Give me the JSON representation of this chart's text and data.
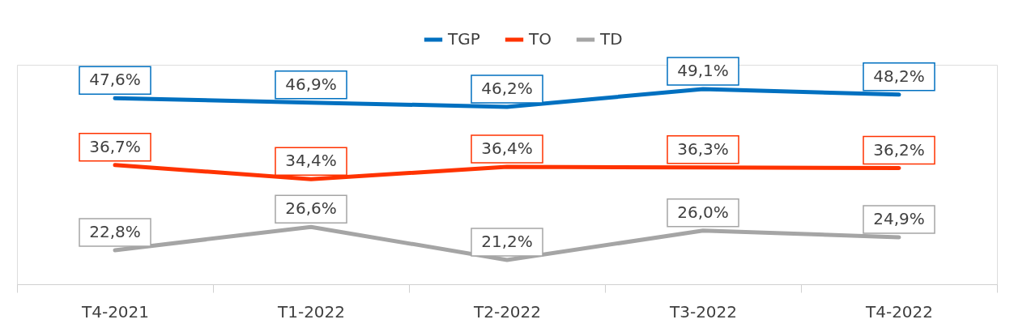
{
  "chart_data": {
    "type": "line",
    "categories": [
      "T4-2021",
      "T1-2022",
      "T2-2022",
      "T3-2022",
      "T4-2022"
    ],
    "series": [
      {
        "name": "TGP",
        "color": "#0070c0",
        "values": [
          47.6,
          46.9,
          46.2,
          49.1,
          48.2
        ],
        "value_labels": [
          "47,6%",
          "46,9%",
          "46,2%",
          "49,1%",
          "48,2%"
        ]
      },
      {
        "name": "TO",
        "color": "#ff3300",
        "values": [
          36.7,
          34.4,
          36.4,
          36.3,
          36.2
        ],
        "value_labels": [
          "36,7%",
          "34,4%",
          "36,4%",
          "36,3%",
          "36,2%"
        ]
      },
      {
        "name": "TD",
        "color": "#a5a5a5",
        "values": [
          22.8,
          26.6,
          21.2,
          26.0,
          24.9
        ],
        "value_labels": [
          "22,8%",
          "26,6%",
          "21,2%",
          "26,0%",
          "24,9%"
        ]
      }
    ],
    "legend": "top",
    "grid": false,
    "marker": "none",
    "line_style": "solid"
  }
}
